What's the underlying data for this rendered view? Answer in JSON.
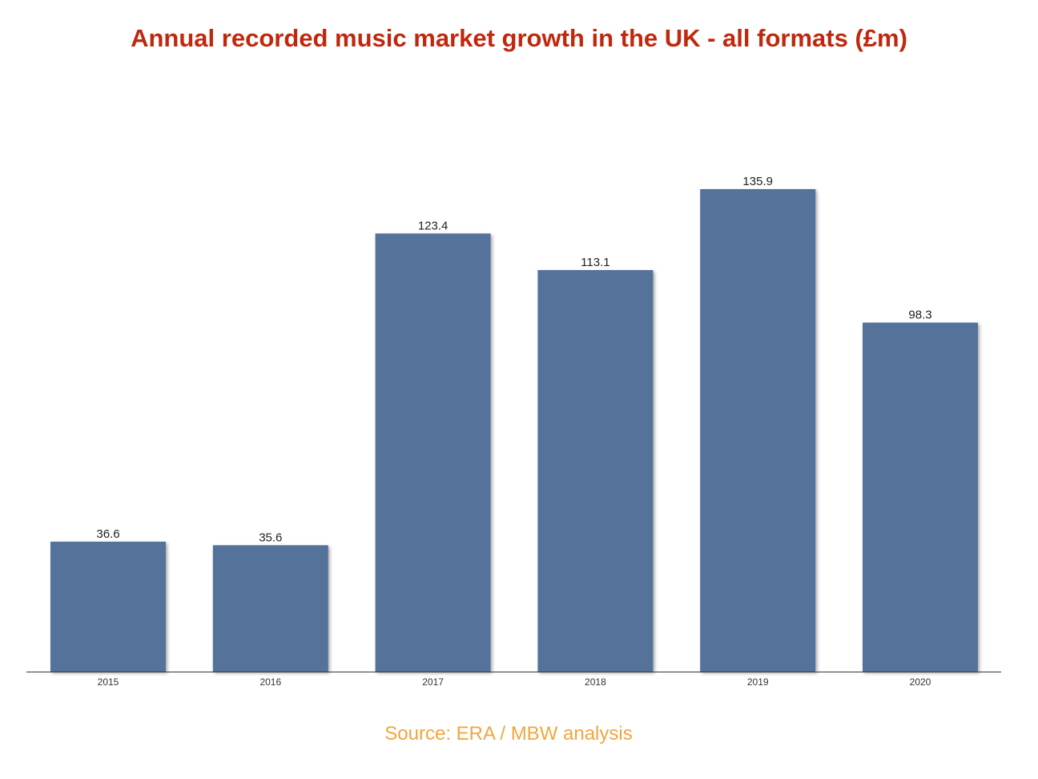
{
  "chart_data": {
    "type": "bar",
    "title": "Annual recorded music market growth in the UK - all formats (£m)",
    "categories": [
      "2015",
      "2016",
      "2017",
      "2018",
      "2019",
      "2020"
    ],
    "values": [
      36.6,
      35.6,
      123.4,
      113.1,
      135.9,
      98.3
    ],
    "data_labels": [
      "36.6",
      "35.6",
      "123.4",
      "113.1",
      "135.9",
      "98.3"
    ],
    "xlabel": "",
    "ylabel": "",
    "ylim": [
      0,
      135.9
    ],
    "grid": false,
    "bar_color": "#55729b",
    "title_color": "#c0280e",
    "source_color": "#f0a640"
  },
  "source": "Source: ERA / MBW analysis"
}
